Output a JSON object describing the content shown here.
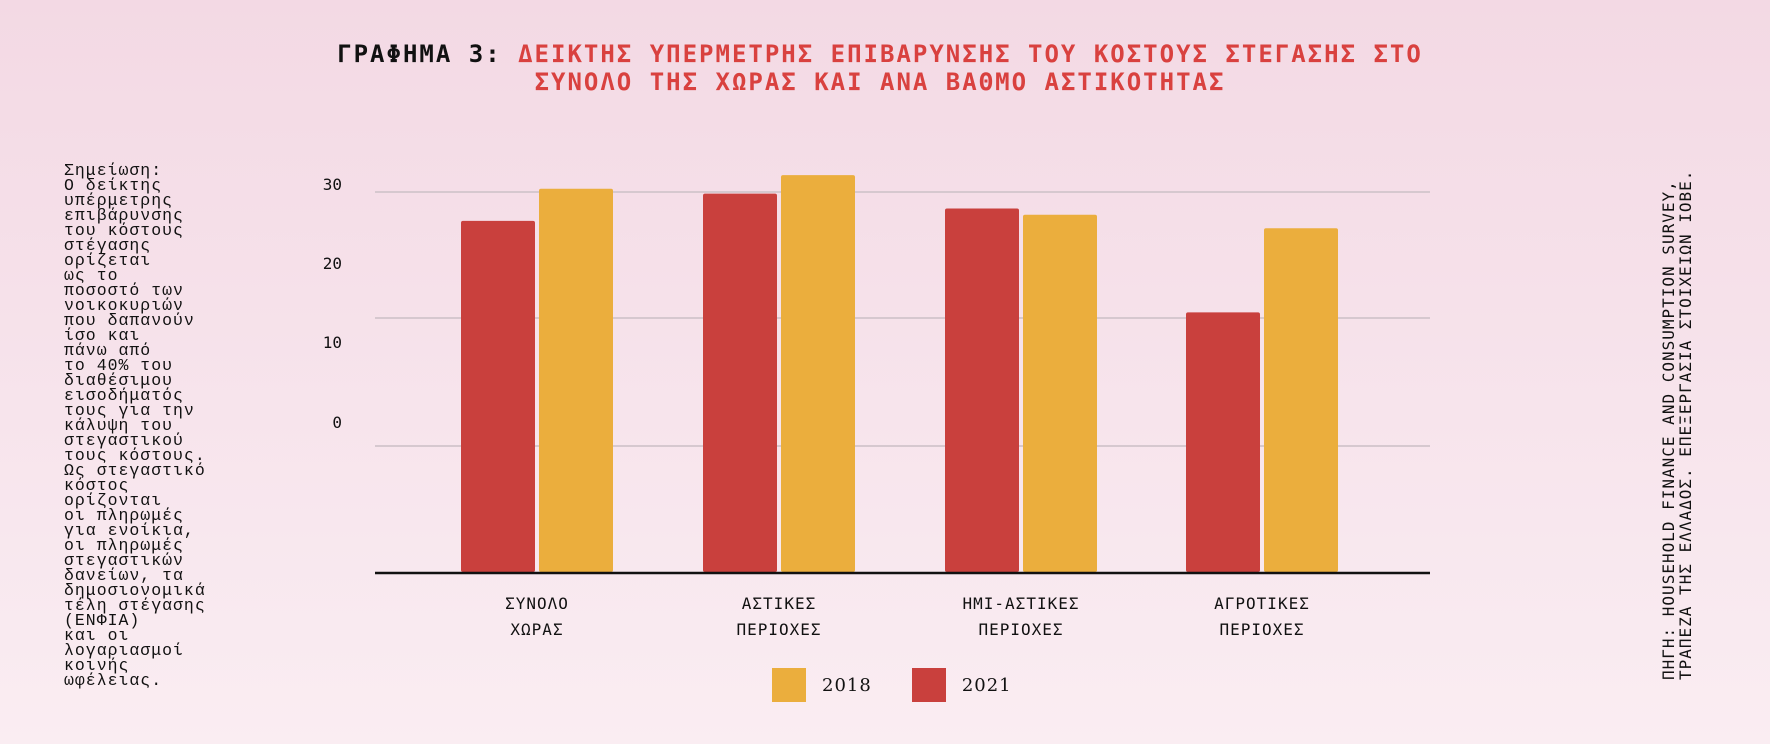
{
  "title": {
    "prefix": "ΓΡΑΦΗΜΑ 3:",
    "line1": "ΔΕΙΚΤΗΣ ΥΠΕΡΜΕΤΡΗΣ ΕΠΙΒΑΡΥΝΣΗΣ ΤΟΥ ΚΟΣΤΟΥΣ ΣΤΕΓΑΣΗΣ ΣΤΟ",
    "line2": "ΣΥΝΟΛΟ ΤΗΣ ΧΩΡΑΣ ΚΑΙ ΑΝΑ ΒΑΘΜΟ ΑΣΤΙΚΟΤΗΤΑΣ"
  },
  "note": "Σημείωση:\nΟ δείκτης\nυπέρμετρης\nεπιβάρυνσης\nτου κόστους\nστέγασης\nορίζεται\nως το\nποσοστό των\nνοικοκυριών\nπου δαπανούν\nίσο και\nπάνω από\nτο 40% του\nδιαθέσιμου\nεισοδήματός\nτους για την\nκάλυψη του\nστεγαστικού\nτους κόστους.\nΩς στεγαστικό\nκόστος\nορίζονται\nοι πληρωμές\nγια ενοίκια,\nοι πληρωμές\nστεγαστικών\nδανείων, τα\nδημοσιονομικά\nτέλη στέγασης\n(ΕΝΦΙΑ)\nκαι οι\nλογαριασμοί\nκοινής\nωφέλειας.",
  "source": {
    "line1": "ΠΗΓΗ: HOUSEHOLD FINANCE AND CONSUMPTION SURVEY,",
    "line2": "ΤΡΑΠΕΖΑ ΤΗΣ ΕΛΛΑΔΟΣ. ΕΠΕΞΕΡΓΑΣΙΑ ΣΤΟΙΧΕΙΩΝ ΙΟΒΕ."
  },
  "colors": {
    "2018": "#ebae3d",
    "2021": "#c9403d",
    "title_accent": "#d9413f"
  },
  "legend": [
    {
      "label": "2018",
      "color": "#ebae3d"
    },
    {
      "label": "2021",
      "color": "#c9403d"
    }
  ],
  "chart_data": {
    "type": "bar",
    "categories": [
      [
        "ΣΥΝΟΛΟ",
        "ΧΩΡΑΣ"
      ],
      [
        "ΑΣΤΙΚΕΣ",
        "ΠΕΡΙΟΧΕΣ"
      ],
      [
        "ΗΜΙ-ΑΣΤΙΚΕΣ",
        "ΠΕΡΙΟΧΕΣ"
      ],
      [
        "ΑΓΡΟΤΙΚΕΣ",
        "ΠΕΡΙΟΧΕΣ"
      ]
    ],
    "series": [
      {
        "name": "2021",
        "color": "#c9403d",
        "values": [
          28.4,
          30.6,
          29.4,
          21.0
        ]
      },
      {
        "name": "2018",
        "color": "#ebae3d",
        "values": [
          31.0,
          32.1,
          28.9,
          27.8
        ]
      }
    ],
    "y_ticks": [
      30,
      20,
      10,
      0
    ],
    "ylim": [
      0,
      33
    ],
    "grid": true,
    "legend_position": "bottom-center"
  }
}
